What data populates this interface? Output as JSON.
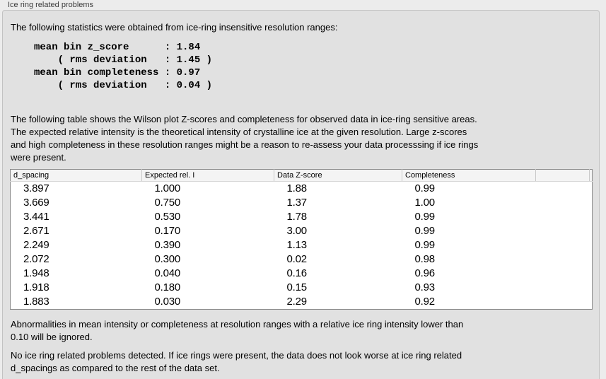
{
  "panel": {
    "title": "Ice ring related problems"
  },
  "intro": {
    "text": "The following statistics were obtained from ice-ring insensitive resolution ranges:",
    "stats_block": "mean bin z_score      : 1.84\n    ( rms deviation   : 1.45 )\nmean bin completeness : 0.97\n    ( rms deviation   : 0.04 )",
    "stats": {
      "mean_bin_z_score": "1.84",
      "z_score_rms_deviation": "1.45",
      "mean_bin_completeness": "0.97",
      "completeness_rms_deviation": "0.04"
    }
  },
  "description": "The following table shows the Wilson plot Z-scores and completeness for observed data in ice-ring sensitive areas.\nThe expected relative intensity is the theoretical intensity of crystalline ice at the given resolution. Large z-scores\nand high completeness in these resolution ranges might be a reason to re-assess your data processsing if ice rings\nwere present.",
  "table": {
    "columns": [
      "d_spacing",
      "Expected rel. I",
      "Data Z-score",
      "Completeness"
    ],
    "rows": [
      [
        "3.897",
        "1.000",
        "1.88",
        "0.99"
      ],
      [
        "3.669",
        "0.750",
        "1.37",
        "1.00"
      ],
      [
        "3.441",
        "0.530",
        "1.78",
        "0.99"
      ],
      [
        "2.671",
        "0.170",
        "3.00",
        "0.99"
      ],
      [
        "2.249",
        "0.390",
        "1.13",
        "0.99"
      ],
      [
        "2.072",
        "0.300",
        "0.02",
        "0.98"
      ],
      [
        "1.948",
        "0.040",
        "0.16",
        "0.96"
      ],
      [
        "1.918",
        "0.180",
        "0.15",
        "0.93"
      ],
      [
        "1.883",
        "0.030",
        "2.29",
        "0.92"
      ]
    ]
  },
  "notes": {
    "ignore_note": "Abnormalities in mean intensity or completeness at resolution ranges with a relative ice ring intensity lower than\n0.10 will be ignored.",
    "conclusion": "No ice ring related problems detected. If ice rings were present, the data does not look worse at ice ring related\nd_spacings as compared to the rest of the data set."
  },
  "colors": {
    "page_bg": "#ececec",
    "panel_bg": "#e1e1e1",
    "panel_border": "#c2c2c2",
    "table_border": "#8a8a8a",
    "table_header_bg": "#f4f4f4",
    "table_bg": "#ffffff",
    "header_divider": "#c9c9c9",
    "text": "#000000",
    "title_text": "#3b3b3b"
  }
}
